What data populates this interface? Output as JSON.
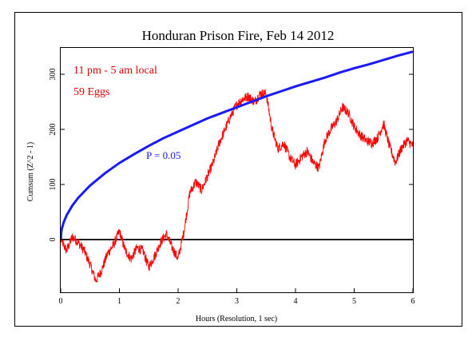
{
  "chart_data": {
    "type": "line",
    "title": "Honduran Prison Fire, Feb 14 2012",
    "xlabel": "Hours (Resolution, 1 sec)",
    "ylabel": "Cumsum (Z^2 - 1)",
    "xlim": [
      0,
      6
    ],
    "ylim": [
      -100,
      350
    ],
    "x_ticks": [
      0,
      1,
      2,
      3,
      4,
      5,
      6
    ],
    "x_tick_labels": [
      "0",
      "1",
      "2",
      "3",
      "4",
      "5",
      "6"
    ],
    "y_ticks": [
      0,
      100,
      200,
      300
    ],
    "y_tick_labels": [
      "0",
      "100",
      "200",
      "300"
    ],
    "grid": false,
    "annotations": [
      {
        "text": "11 pm - 5 am local",
        "color": "#dd0000"
      },
      {
        "text": "59 Eggs",
        "color": "#dd0000"
      },
      {
        "text": "P = 0.05",
        "color": "#1a1aff",
        "x": 1.45,
        "y": 150
      }
    ],
    "series": [
      {
        "color": "#ff0000",
        "x": [
          0,
          0.1,
          0.2,
          0.3,
          0.4,
          0.5,
          0.6,
          0.7,
          0.8,
          0.9,
          1.0,
          1.1,
          1.2,
          1.3,
          1.4,
          1.5,
          1.6,
          1.7,
          1.8,
          1.9,
          2.0,
          2.1,
          2.2,
          2.3,
          2.4,
          2.5,
          2.6,
          2.7,
          2.8,
          2.9,
          3.0,
          3.1,
          3.2,
          3.3,
          3.4,
          3.5,
          3.6,
          3.7,
          3.8,
          3.9,
          4.0,
          4.1,
          4.2,
          4.3,
          4.4,
          4.5,
          4.6,
          4.7,
          4.8,
          4.9,
          5.0,
          5.1,
          5.2,
          5.3,
          5.4,
          5.5,
          5.6,
          5.7,
          5.8,
          5.9,
          6.0
        ],
        "y": [
          0,
          -20,
          5,
          -5,
          -20,
          -45,
          -75,
          -55,
          -25,
          -10,
          15,
          -20,
          -35,
          -15,
          -20,
          -50,
          -30,
          -5,
          10,
          -15,
          -35,
          15,
          85,
          105,
          90,
          115,
          140,
          175,
          200,
          225,
          245,
          255,
          260,
          250,
          265,
          265,
          200,
          165,
          175,
          150,
          135,
          150,
          160,
          140,
          130,
          180,
          200,
          215,
          240,
          230,
          205,
          190,
          180,
          175,
          185,
          210,
          170,
          140,
          165,
          180,
          170
        ]
      },
      {
        "color": "#1a1aff",
        "x": [
          0,
          0.01,
          0.02,
          0.05,
          0.1,
          0.2,
          0.3,
          0.5,
          0.75,
          1.0,
          1.25,
          1.5,
          1.75,
          2.0,
          2.25,
          2.5,
          2.75,
          3.0,
          3.25,
          3.5,
          3.75,
          4.0,
          4.25,
          4.5,
          4.75,
          5.0,
          5.25,
          5.5,
          5.75,
          6.0
        ],
        "y": [
          0,
          14,
          20,
          31,
          44,
          62,
          76,
          98,
          120,
          139,
          155,
          170,
          184,
          196,
          208,
          220,
          230,
          240,
          250,
          260,
          269,
          278,
          286,
          294,
          303,
          311,
          318,
          326,
          334,
          341
        ]
      },
      {
        "color": "#000000",
        "x": [
          0,
          6
        ],
        "y": [
          0,
          0
        ]
      }
    ]
  }
}
